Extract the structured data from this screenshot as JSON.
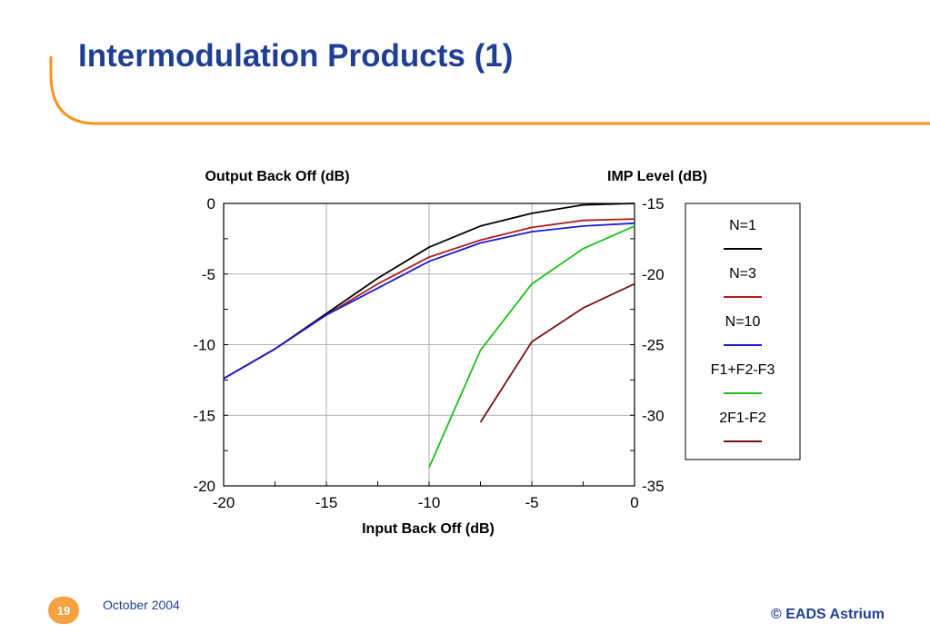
{
  "slide": {
    "title": "Intermodulation Products (1)",
    "page_number": "19",
    "date": "October 2004",
    "copyright": "© EADS Astrium",
    "accent_color": "#f7941d",
    "title_color": "#1f3f95"
  },
  "chart_data": {
    "type": "line",
    "xlabel": "Input Back Off (dB)",
    "ylabel_left": "Output Back Off (dB)",
    "ylabel_right": "IMP Level (dB)",
    "xlim": [
      -20,
      0
    ],
    "ylim_left": [
      -20,
      0
    ],
    "ylim_right": [
      -35,
      -15
    ],
    "x_ticks": [
      "-20",
      "-15",
      "-10",
      "-5",
      "0"
    ],
    "y_left_ticks": [
      "0",
      "-5",
      "-10",
      "-15",
      "-20"
    ],
    "y_right_ticks": [
      "-15",
      "-20",
      "-25",
      "-30",
      "-35"
    ],
    "grid": true,
    "legend_position": "right",
    "series": [
      {
        "name": "N=1",
        "axis": "left",
        "color": "#000000",
        "x": [
          -20,
          -17.5,
          -15,
          -12.5,
          -10,
          -7.5,
          -5,
          -2.5,
          0
        ],
        "y": [
          -12.4,
          -10.3,
          -7.8,
          -5.3,
          -3.1,
          -1.6,
          -0.7,
          -0.1,
          0
        ]
      },
      {
        "name": "N=3",
        "axis": "left",
        "color": "#b01c1c",
        "x": [
          -20,
          -17.5,
          -15,
          -12.5,
          -10,
          -7.5,
          -5,
          -2.5,
          0
        ],
        "y": [
          -12.4,
          -10.3,
          -7.9,
          -5.7,
          -3.8,
          -2.6,
          -1.7,
          -1.2,
          -1.1
        ]
      },
      {
        "name": "N=10",
        "axis": "left",
        "color": "#1c1ccc",
        "x": [
          -20,
          -17.5,
          -15,
          -12.5,
          -10,
          -7.5,
          -5,
          -2.5,
          0
        ],
        "y": [
          -12.4,
          -10.3,
          -7.9,
          -6.0,
          -4.1,
          -2.8,
          -2.0,
          -1.6,
          -1.4
        ]
      },
      {
        "name": "F1+F2-F3",
        "axis": "right",
        "color": "#1bbf1b",
        "x": [
          -10,
          -7.5,
          -5,
          -2.5,
          0
        ],
        "y": [
          -33.7,
          -25.4,
          -20.7,
          -18.2,
          -16.6
        ]
      },
      {
        "name": "2F1-F2",
        "axis": "right",
        "color": "#7a1010",
        "x": [
          -7.5,
          -5,
          -2.5,
          0
        ],
        "y": [
          -30.5,
          -24.8,
          -22.4,
          -20.7
        ]
      }
    ]
  }
}
